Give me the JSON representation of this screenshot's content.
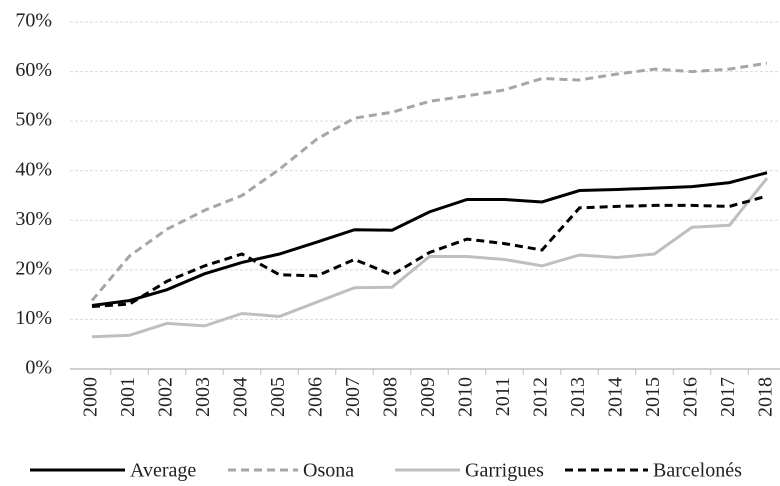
{
  "chart_data": {
    "type": "line",
    "categories": [
      "2000",
      "2001",
      "2002",
      "2003",
      "2004",
      "2005",
      "2006",
      "2007",
      "2008",
      "2009",
      "2010",
      "2011",
      "2012",
      "2013",
      "2014",
      "2015",
      "2016",
      "2017",
      "2018"
    ],
    "series": [
      {
        "name": "Average",
        "color": "#000000",
        "style": "solid",
        "values": [
          12.8,
          13.8,
          16,
          19.2,
          21.5,
          23.2,
          25.6,
          28.1,
          28,
          31.7,
          34.2,
          34.2,
          33.7,
          36,
          36.2,
          36.5,
          36.8,
          37.6,
          39.6
        ]
      },
      {
        "name": "Osona",
        "color": "#a6a6a6",
        "style": "dashed",
        "values": [
          13.8,
          22.8,
          28.2,
          32,
          35,
          40.3,
          46.4,
          50.6,
          51.8,
          54,
          55.1,
          56.3,
          58.6,
          58.3,
          59.5,
          60.5,
          60,
          60.5,
          61.7
        ]
      },
      {
        "name": "Garrigues",
        "color": "#bfbfbf",
        "style": "solid",
        "values": [
          6.5,
          6.8,
          9.2,
          8.7,
          11.2,
          10.6,
          13.5,
          16.4,
          16.5,
          22.7,
          22.7,
          22.1,
          20.8,
          23,
          22.5,
          23.2,
          28.6,
          29,
          38.5
        ]
      },
      {
        "name": "Barcelonés",
        "color": "#000000",
        "style": "dashed",
        "values": [
          12.6,
          13.1,
          17.7,
          20.8,
          23.2,
          19,
          18.8,
          22.1,
          19,
          23.5,
          26.2,
          25.3,
          24,
          32.5,
          32.8,
          33,
          33,
          32.8,
          34.9
        ]
      }
    ],
    "ylim": [
      0,
      70
    ],
    "yticks": [
      {
        "value": 0,
        "label": "0%"
      },
      {
        "value": 10,
        "label": "10%"
      },
      {
        "value": 20,
        "label": "20%"
      },
      {
        "value": 30,
        "label": "30%"
      },
      {
        "value": 40,
        "label": "40%"
      },
      {
        "value": 50,
        "label": "50%"
      },
      {
        "value": 60,
        "label": "60%"
      },
      {
        "value": 70,
        "label": "70%"
      }
    ],
    "grid": true,
    "legend": "bottom"
  }
}
